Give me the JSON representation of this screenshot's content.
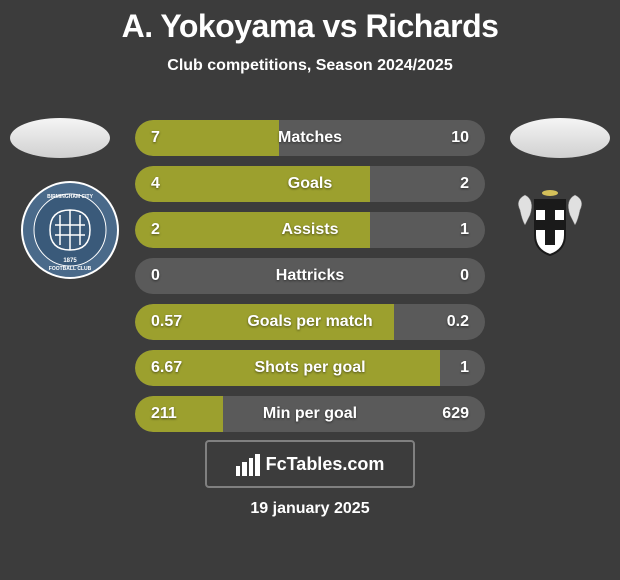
{
  "title": "A. Yokoyama vs Richards",
  "subtitle": "Club competitions, Season 2024/2025",
  "date": "19 january 2025",
  "branding": "FcTables.com",
  "player_left": {
    "name": "A. Yokoyama",
    "avatar_bg": "#e8e8e8",
    "club_name": "Birmingham City Football Club",
    "club_badge_bg": "#4a6a8a"
  },
  "player_right": {
    "name": "Richards",
    "avatar_bg": "#e8e8e8",
    "club_name": "Elgin City",
    "club_badge_bg": "#d4c05a"
  },
  "colors": {
    "background": "#3c3c3c",
    "bar_neutral": "#5a5a5a",
    "bar_left": "#9ca02e",
    "bar_right": "#9ca02e",
    "text": "#ffffff"
  },
  "stats": [
    {
      "label": "Matches",
      "left_value": "7",
      "right_value": "10",
      "left_width_pct": 41,
      "right_width_pct": 59,
      "left_color": "#9ca02e",
      "right_color": "#5a5a5a"
    },
    {
      "label": "Goals",
      "left_value": "4",
      "right_value": "2",
      "left_width_pct": 67,
      "right_width_pct": 33,
      "left_color": "#9ca02e",
      "right_color": "#5a5a5a"
    },
    {
      "label": "Assists",
      "left_value": "2",
      "right_value": "1",
      "left_width_pct": 67,
      "right_width_pct": 33,
      "left_color": "#9ca02e",
      "right_color": "#5a5a5a"
    },
    {
      "label": "Hattricks",
      "left_value": "0",
      "right_value": "0",
      "left_width_pct": 0,
      "right_width_pct": 0,
      "left_color": "#9ca02e",
      "right_color": "#5a5a5a"
    },
    {
      "label": "Goals per match",
      "left_value": "0.57",
      "right_value": "0.2",
      "left_width_pct": 74,
      "right_width_pct": 26,
      "left_color": "#9ca02e",
      "right_color": "#5a5a5a"
    },
    {
      "label": "Shots per goal",
      "left_value": "6.67",
      "right_value": "1",
      "left_width_pct": 87,
      "right_width_pct": 13,
      "left_color": "#9ca02e",
      "right_color": "#5a5a5a"
    },
    {
      "label": "Min per goal",
      "left_value": "211",
      "right_value": "629",
      "left_width_pct": 25,
      "right_width_pct": 75,
      "left_color": "#9ca02e",
      "right_color": "#5a5a5a"
    }
  ]
}
